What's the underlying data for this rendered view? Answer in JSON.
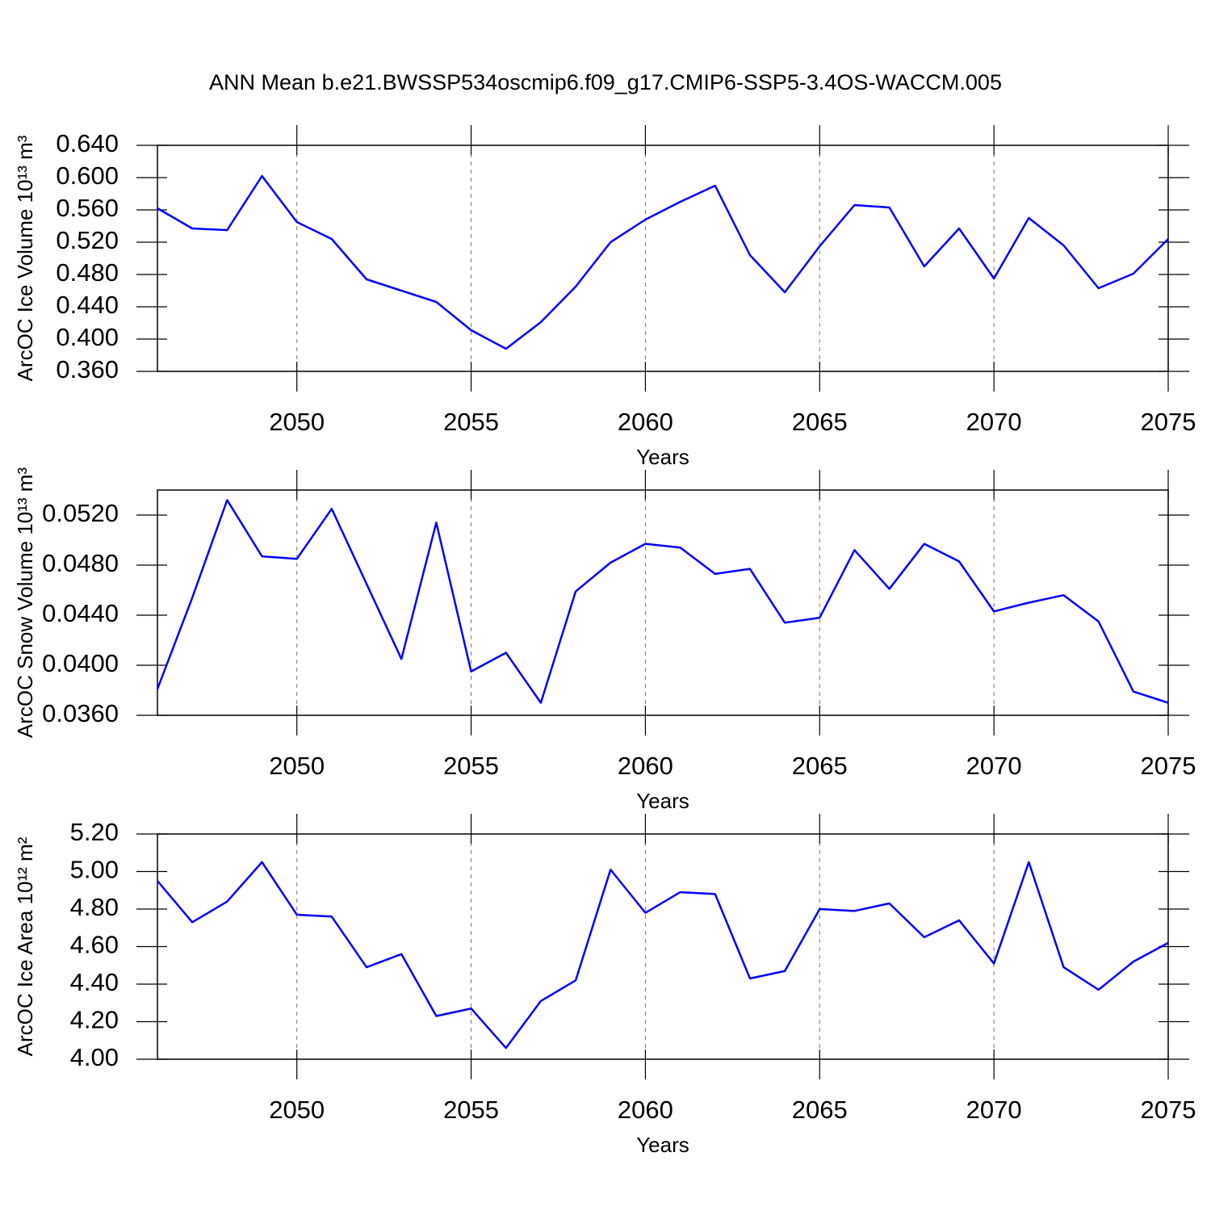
{
  "chart_data": [
    {
      "type": "line",
      "title": "ANN Mean b.e21.BWSSP534oscmip6.f09_g17.CMIP6-SSP5-3.4OS-WACCM.005",
      "x_label": "Years",
      "y_label": "ArcOC Ice Volume 10¹³ m³",
      "color": "#0000ff",
      "grid": true,
      "x": [
        2046,
        2047,
        2048,
        2049,
        2050,
        2051,
        2052,
        2053,
        2054,
        2055,
        2056,
        2057,
        2058,
        2059,
        2060,
        2061,
        2062,
        2063,
        2064,
        2065,
        2066,
        2067,
        2068,
        2069,
        2070,
        2071,
        2072,
        2073,
        2074,
        2075
      ],
      "values": [
        0.562,
        0.537,
        0.535,
        0.602,
        0.545,
        0.524,
        0.474,
        0.46,
        0.446,
        0.411,
        0.388,
        0.421,
        0.465,
        0.52,
        0.548,
        0.57,
        0.59,
        0.504,
        0.458,
        0.515,
        0.566,
        0.563,
        0.49,
        0.537,
        0.475,
        0.55,
        0.516,
        0.463,
        0.481,
        0.524
      ],
      "xlim": [
        2046,
        2075
      ],
      "xticks": [
        2050,
        2055,
        2060,
        2065,
        2070,
        2075
      ],
      "ylim": [
        0.36,
        0.64
      ],
      "yticks": [
        {
          "value": 0.36,
          "label": "0.360"
        },
        {
          "value": 0.4,
          "label": "0.400"
        },
        {
          "value": 0.44,
          "label": "0.440"
        },
        {
          "value": 0.48,
          "label": "0.480"
        },
        {
          "value": 0.52,
          "label": "0.520"
        },
        {
          "value": 0.56,
          "label": "0.560"
        },
        {
          "value": 0.6,
          "label": "0.600"
        },
        {
          "value": 0.64,
          "label": "0.640"
        }
      ]
    },
    {
      "type": "line",
      "x_label": "Years",
      "y_label": "ArcOC Snow Volume 10¹³ m³",
      "color": "#0000ff",
      "grid": true,
      "x": [
        2046,
        2047,
        2048,
        2049,
        2050,
        2051,
        2052,
        2053,
        2054,
        2055,
        2056,
        2057,
        2058,
        2059,
        2060,
        2061,
        2062,
        2063,
        2064,
        2065,
        2066,
        2067,
        2068,
        2069,
        2070,
        2071,
        2072,
        2073,
        2074,
        2075
      ],
      "values": [
        0.0381,
        0.0454,
        0.0532,
        0.0487,
        0.0485,
        0.0525,
        0.0465,
        0.0405,
        0.0514,
        0.0395,
        0.041,
        0.037,
        0.0459,
        0.0482,
        0.0497,
        0.0494,
        0.0473,
        0.0477,
        0.0434,
        0.0438,
        0.0492,
        0.0461,
        0.0497,
        0.0483,
        0.0443,
        0.045,
        0.0456,
        0.0435,
        0.0379,
        0.037
      ],
      "xlim": [
        2046,
        2075
      ],
      "xticks": [
        2050,
        2055,
        2060,
        2065,
        2070,
        2075
      ],
      "ylim": [
        0.036,
        0.054
      ],
      "yticks": [
        {
          "value": 0.036,
          "label": "0.0360"
        },
        {
          "value": 0.04,
          "label": "0.0400"
        },
        {
          "value": 0.044,
          "label": "0.0440"
        },
        {
          "value": 0.048,
          "label": "0.0480"
        },
        {
          "value": 0.052,
          "label": "0.0520"
        }
      ]
    },
    {
      "type": "line",
      "x_label": "Years",
      "y_label": "ArcOC Ice Area 10¹² m²",
      "color": "#0000ff",
      "grid": true,
      "x": [
        2046,
        2047,
        2048,
        2049,
        2050,
        2051,
        2052,
        2053,
        2054,
        2055,
        2056,
        2057,
        2058,
        2059,
        2060,
        2061,
        2062,
        2063,
        2064,
        2065,
        2066,
        2067,
        2068,
        2069,
        2070,
        2071,
        2072,
        2073,
        2074,
        2075
      ],
      "values": [
        4.95,
        4.73,
        4.84,
        5.05,
        4.77,
        4.76,
        4.49,
        4.56,
        4.23,
        4.27,
        4.06,
        4.31,
        4.42,
        5.01,
        4.78,
        4.89,
        4.88,
        4.43,
        4.47,
        4.8,
        4.79,
        4.83,
        4.65,
        4.74,
        4.51,
        5.05,
        4.49,
        4.37,
        4.52,
        4.62
      ],
      "xlim": [
        2046,
        2075
      ],
      "xticks": [
        2050,
        2055,
        2060,
        2065,
        2070,
        2075
      ],
      "ylim": [
        4.0,
        5.2
      ],
      "yticks": [
        {
          "value": 4.0,
          "label": "4.00"
        },
        {
          "value": 4.2,
          "label": "4.20"
        },
        {
          "value": 4.4,
          "label": "4.40"
        },
        {
          "value": 4.6,
          "label": "4.60"
        },
        {
          "value": 4.8,
          "label": "4.80"
        },
        {
          "value": 5.0,
          "label": "5.00"
        },
        {
          "value": 5.2,
          "label": "5.20"
        }
      ]
    }
  ]
}
